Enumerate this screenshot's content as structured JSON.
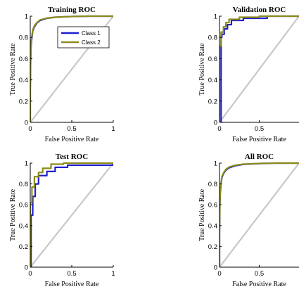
{
  "colors": {
    "class1": "#1f1fd0",
    "class2": "#8c8c1a",
    "diagonal": "#c8c8c8",
    "axis": "#000000"
  },
  "chart_data": [
    {
      "type": "line",
      "title": "Training ROC",
      "xlabel": "False Positive Rate",
      "ylabel": "True Positive Rate",
      "xlim": [
        0,
        1
      ],
      "ylim": [
        0,
        1
      ],
      "xticks": [
        "0",
        "0.5",
        "1"
      ],
      "yticks": [
        "0",
        "0.2",
        "0.4",
        "0.6",
        "0.8",
        "1"
      ],
      "legend": {
        "position": "top-right",
        "entries": [
          "Class 1",
          "Class 2"
        ]
      },
      "series": [
        {
          "name": "Class 1",
          "x": [
            0,
            0,
            0.005,
            0.01,
            0.02,
            0.03,
            0.05,
            0.08,
            0.12,
            0.2,
            0.3,
            0.5,
            0.7,
            1
          ],
          "y": [
            0,
            0.3,
            0.6,
            0.72,
            0.8,
            0.86,
            0.9,
            0.935,
            0.96,
            0.98,
            0.99,
            0.997,
            1,
            1
          ]
        },
        {
          "name": "Class 2",
          "x": [
            0,
            0,
            0.005,
            0.01,
            0.02,
            0.03,
            0.05,
            0.08,
            0.12,
            0.2,
            0.3,
            0.5,
            0.7,
            1
          ],
          "y": [
            0,
            0.35,
            0.63,
            0.74,
            0.82,
            0.87,
            0.91,
            0.94,
            0.965,
            0.982,
            0.99,
            0.997,
            1,
            1
          ]
        }
      ]
    },
    {
      "type": "line",
      "title": "Validation ROC",
      "xlabel": "False Positive Rate",
      "ylabel": "True Positive Rate",
      "xlim": [
        0,
        1
      ],
      "ylim": [
        0,
        1
      ],
      "xticks": [
        "0",
        "0.5"
      ],
      "yticks": [
        "0",
        "0.2",
        "0.4",
        "0.6",
        "0.8",
        "1"
      ],
      "series": [
        {
          "name": "Class 1",
          "x": [
            0,
            0.02,
            0.02,
            0.03,
            0.03,
            0.06,
            0.06,
            0.1,
            0.1,
            0.15,
            0.15,
            0.3,
            0.3,
            0.6,
            0.6,
            1
          ],
          "y": [
            0,
            0,
            0.8,
            0.8,
            0.83,
            0.83,
            0.88,
            0.88,
            0.92,
            0.92,
            0.96,
            0.96,
            0.98,
            0.98,
            1,
            1
          ]
        },
        {
          "name": "Class 2",
          "x": [
            0,
            0,
            0.02,
            0.02,
            0.05,
            0.05,
            0.08,
            0.08,
            0.12,
            0.12,
            0.25,
            0.25,
            0.5,
            0.5,
            1
          ],
          "y": [
            0,
            0.72,
            0.72,
            0.85,
            0.85,
            0.9,
            0.9,
            0.94,
            0.94,
            0.97,
            0.97,
            0.99,
            0.99,
            1,
            1
          ]
        }
      ]
    },
    {
      "type": "line",
      "title": "Test ROC",
      "xlabel": "False Positive Rate",
      "ylabel": "True Positive Rate",
      "xlim": [
        0,
        1
      ],
      "ylim": [
        0,
        1
      ],
      "xticks": [
        "0",
        "0.5",
        "1"
      ],
      "yticks": [
        "0",
        "0.2",
        "0.4",
        "0.6",
        "0.8",
        "1"
      ],
      "series": [
        {
          "name": "Class 1",
          "x": [
            0,
            0.01,
            0.01,
            0.03,
            0.03,
            0.06,
            0.06,
            0.1,
            0.1,
            0.2,
            0.2,
            0.3,
            0.3,
            0.45,
            0.45,
            1,
            1
          ],
          "y": [
            0,
            0,
            0.5,
            0.5,
            0.68,
            0.68,
            0.8,
            0.8,
            0.88,
            0.88,
            0.92,
            0.92,
            0.96,
            0.96,
            0.98,
            0.98,
            1
          ]
        },
        {
          "name": "Class 2",
          "x": [
            0,
            0,
            0.02,
            0.02,
            0.05,
            0.05,
            0.1,
            0.1,
            0.15,
            0.15,
            0.25,
            0.25,
            0.4,
            0.4,
            1
          ],
          "y": [
            0,
            0.62,
            0.62,
            0.77,
            0.77,
            0.87,
            0.87,
            0.91,
            0.91,
            0.95,
            0.95,
            0.99,
            0.99,
            1,
            1
          ]
        }
      ]
    },
    {
      "type": "line",
      "title": "All ROC",
      "xlabel": "False Positive Rate",
      "ylabel": "True Positive Rate",
      "xlim": [
        0,
        1
      ],
      "ylim": [
        0,
        1
      ],
      "xticks": [
        "0",
        "0.5"
      ],
      "yticks": [
        "0",
        "0.2",
        "0.4",
        "0.6",
        "0.8",
        "1"
      ],
      "series": [
        {
          "name": "Class 1",
          "x": [
            0,
            0,
            0.005,
            0.01,
            0.02,
            0.03,
            0.05,
            0.08,
            0.12,
            0.2,
            0.3,
            0.5,
            0.7,
            1
          ],
          "y": [
            0,
            0.3,
            0.6,
            0.72,
            0.8,
            0.86,
            0.9,
            0.932,
            0.955,
            0.975,
            0.988,
            0.996,
            1,
            1
          ]
        },
        {
          "name": "Class 2",
          "x": [
            0,
            0,
            0.005,
            0.01,
            0.02,
            0.03,
            0.05,
            0.08,
            0.12,
            0.2,
            0.3,
            0.5,
            0.7,
            1
          ],
          "y": [
            0,
            0.34,
            0.62,
            0.73,
            0.81,
            0.87,
            0.905,
            0.94,
            0.962,
            0.98,
            0.99,
            0.997,
            1,
            1
          ]
        }
      ]
    }
  ]
}
